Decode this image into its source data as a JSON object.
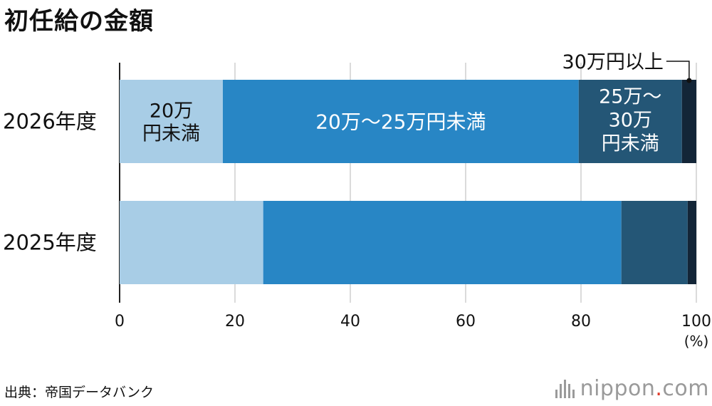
{
  "title": "初任給の金額",
  "source": "出典：帝国データバンク",
  "logo": {
    "name": "nippon",
    "dot": ".",
    "suffix": "com"
  },
  "chart_data": {
    "type": "bar",
    "orientation": "horizontal",
    "stacked": true,
    "categories": [
      "2026年度",
      "2025年度"
    ],
    "series": [
      {
        "name": "20万円未満",
        "color": "#a8cde6",
        "values": [
          17.9,
          24.9
        ]
      },
      {
        "name": "20万～25万円未満",
        "color": "#2886c5",
        "values": [
          61.7,
          62.1
        ]
      },
      {
        "name": "25万～30万円未満",
        "color": "#245676",
        "values": [
          17.9,
          11.5
        ]
      },
      {
        "name": "30万円以上",
        "color": "#132537",
        "values": [
          2.5,
          1.5
        ]
      }
    ],
    "xlim": [
      0,
      100
    ],
    "xticks": [
      "0",
      "20",
      "40",
      "60",
      "80",
      "100"
    ],
    "xunit": "(%)",
    "grid": true
  }
}
